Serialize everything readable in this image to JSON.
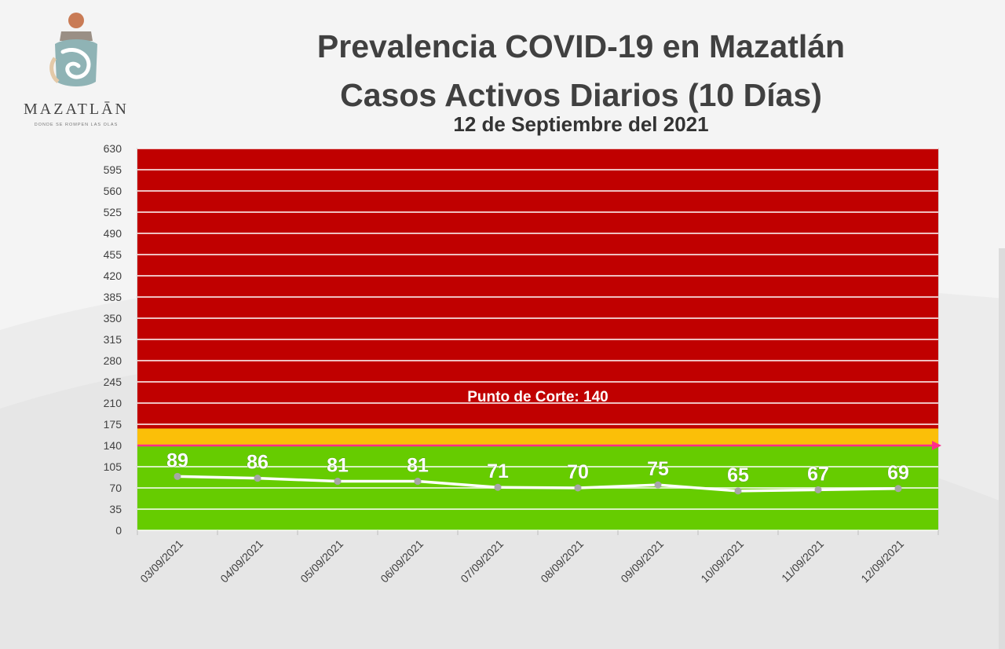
{
  "header": {
    "title_line1": "Prevalencia COVID-19 en Mazatlán",
    "title_line2": "Casos Activos Diarios (10 Días)",
    "date_line": "12 de Septiembre del 2021"
  },
  "logo": {
    "name": "MAZATLĀN",
    "tagline": "DONDE SE ROMPEN LAS OLAS",
    "icon": "mazatlan-logo-icon"
  },
  "colors": {
    "red_zone": "#c00000",
    "yellow_zone": "#fbbf08",
    "green_zone": "#66cc00",
    "cutoff_line": "#ff2d8a",
    "series_line": "#ffffff",
    "marker": "#a6a6a6"
  },
  "chart_data": {
    "type": "line",
    "title": "Casos Activos Diarios (10 Días)",
    "categories": [
      "03/09/2021",
      "04/09/2021",
      "05/09/2021",
      "06/09/2021",
      "07/09/2021",
      "08/09/2021",
      "09/09/2021",
      "10/09/2021",
      "11/09/2021",
      "12/09/2021"
    ],
    "series": [
      {
        "values": [
          89,
          86,
          81,
          81,
          71,
          70,
          75,
          65,
          67,
          69
        ]
      }
    ],
    "data_labels": [
      "89",
      "86",
      "81",
      "81",
      "71",
      "70",
      "75",
      "65",
      "67",
      "69"
    ],
    "ylim": [
      0,
      630
    ],
    "yticks": [
      0,
      35,
      70,
      105,
      140,
      175,
      210,
      245,
      280,
      315,
      350,
      385,
      420,
      455,
      490,
      525,
      560,
      595,
      630
    ],
    "grid": true,
    "zones": [
      {
        "color": "green",
        "from": 0,
        "to": 140
      },
      {
        "color": "yellow",
        "from": 140,
        "to": 168
      },
      {
        "color": "red",
        "from": 168,
        "to": 630
      }
    ],
    "cutoff": {
      "value": 140,
      "label": "Punto de Corte: 140"
    }
  }
}
